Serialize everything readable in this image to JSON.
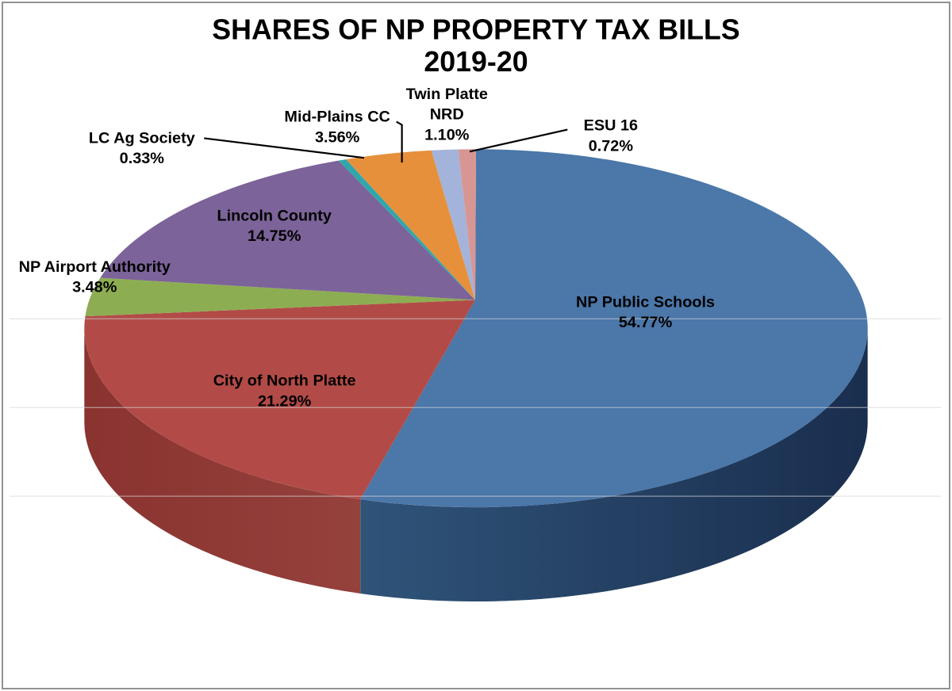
{
  "title": {
    "line1": "SHARES OF NP PROPERTY TAX BILLS",
    "line2": "2019-20"
  },
  "colors": {
    "background": "#ffffff",
    "frame_border": "#929292",
    "label_text": "#000000",
    "leader_line": "#000000",
    "gridline": "#d6d6d6"
  },
  "chart_data": {
    "type": "pie",
    "style": "3d",
    "title": "SHARES OF NP PROPERTY TAX BILLS",
    "subtitle": "2019-20",
    "start_angle_deg": 0,
    "direction": "clockwise",
    "legend": "none",
    "gridlines": "faint-horizontal",
    "slices": [
      {
        "label": "NP Public Schools",
        "label_lines": [
          "NP Public Schools"
        ],
        "value": 54.77,
        "pct_label": "54.77%",
        "color": "#4b77a9",
        "side_color": "#24426a"
      },
      {
        "label": "City of North Platte",
        "label_lines": [
          "City of North Platte"
        ],
        "value": 21.29,
        "pct_label": "21.29%",
        "color": "#b24b47",
        "side_color": "#8e3733"
      },
      {
        "label": "NP Airport Authority",
        "label_lines": [
          "NP Airport Authority"
        ],
        "value": 3.48,
        "pct_label": "3.48%",
        "color": "#8dad52",
        "side_color": null
      },
      {
        "label": "Lincoln County",
        "label_lines": [
          "Lincoln County"
        ],
        "value": 14.75,
        "pct_label": "14.75%",
        "color": "#7c6399",
        "side_color": null
      },
      {
        "label": "LC Ag Society",
        "label_lines": [
          "LC Ag Society"
        ],
        "value": 0.33,
        "pct_label": "0.33%",
        "color": "#2fa7ad",
        "side_color": null
      },
      {
        "label": "Mid-Plains CC",
        "label_lines": [
          "Mid-Plains CC"
        ],
        "value": 3.56,
        "pct_label": "3.56%",
        "color": "#e7903c",
        "side_color": null
      },
      {
        "label": "Twin Platte NRD",
        "label_lines": [
          "Twin Platte",
          "NRD"
        ],
        "value": 1.1,
        "pct_label": "1.10%",
        "color": "#a4b3da",
        "side_color": null
      },
      {
        "label": "ESU 16",
        "label_lines": [
          "ESU 16"
        ],
        "value": 0.72,
        "pct_label": "0.72%",
        "color": "#d79693",
        "side_color": null
      }
    ]
  }
}
